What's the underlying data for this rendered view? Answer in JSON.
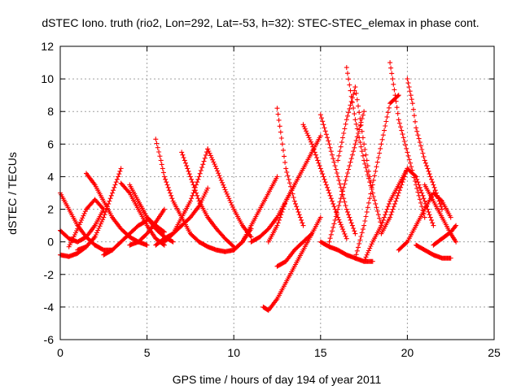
{
  "chart_data": {
    "type": "scatter",
    "title": "dSTEC Iono. truth (rio2, Lon=292, Lat=-53, h=32): STEC-STEC_elemax in phase cont.",
    "xlabel": "GPS time / hours of day 194 of year 2011",
    "ylabel": "dSTEC  / TECUs",
    "xlim": [
      0,
      25
    ],
    "ylim": [
      -6,
      12
    ],
    "xticks": [
      "0",
      "5",
      "10",
      "15",
      "20",
      "25"
    ],
    "yticks": [
      "-6",
      "-4",
      "-2",
      "0",
      "2",
      "4",
      "6",
      "8",
      "10",
      "12"
    ],
    "grid": true,
    "marker": "+",
    "color": "#ff0000",
    "series": [
      {
        "x": [
          0.0,
          0.5,
          1.0,
          1.5,
          2.0,
          2.5,
          3.0
        ],
        "y": [
          3.0,
          2.0,
          1.0,
          0.3,
          -0.2,
          -0.5,
          -0.5
        ]
      },
      {
        "x": [
          0.0,
          0.5,
          1.0,
          1.5,
          2.0
        ],
        "y": [
          -0.8,
          -0.9,
          -0.7,
          -0.3,
          0.3
        ]
      },
      {
        "x": [
          0.0,
          0.5,
          1.0,
          1.5,
          2.0,
          2.5
        ],
        "y": [
          0.7,
          0.2,
          0.0,
          0.3,
          1.0,
          2.0
        ]
      },
      {
        "x": [
          0.5,
          1.0,
          1.5,
          2.0,
          2.5
        ],
        "y": [
          -0.3,
          0.8,
          2.0,
          2.6,
          2.0
        ]
      },
      {
        "x": [
          1.5,
          2.0,
          2.5,
          3.0,
          3.5,
          4.0,
          4.5,
          5.0
        ],
        "y": [
          4.2,
          3.5,
          2.5,
          1.5,
          0.8,
          0.3,
          0.0,
          -0.2
        ]
      },
      {
        "x": [
          1.0,
          1.5,
          2.0,
          2.5,
          3.0,
          3.5
        ],
        "y": [
          -0.5,
          -0.3,
          0.3,
          1.5,
          3.0,
          4.5
        ]
      },
      {
        "x": [
          2.5,
          3.0,
          3.5,
          4.0,
          4.5,
          5.0
        ],
        "y": [
          -0.8,
          -0.5,
          0.0,
          0.5,
          1.0,
          1.3
        ]
      },
      {
        "x": [
          3.5,
          4.0,
          4.5,
          5.0,
          5.5,
          6.0
        ],
        "y": [
          3.6,
          3.0,
          2.0,
          1.0,
          0.2,
          -0.2
        ]
      },
      {
        "x": [
          4.0,
          4.5,
          5.0,
          5.5,
          6.0,
          6.5
        ],
        "y": [
          3.5,
          2.5,
          1.5,
          0.8,
          0.3,
          0.0
        ]
      },
      {
        "x": [
          4.5,
          5.0,
          5.5,
          6.0
        ],
        "y": [
          2.5,
          1.5,
          1.0,
          0.6
        ]
      },
      {
        "x": [
          4.0,
          4.5,
          5.0,
          5.5,
          6.0
        ],
        "y": [
          -0.2,
          0.0,
          0.5,
          1.2,
          2.0
        ]
      },
      {
        "x": [
          5.5,
          5.8,
          6.0,
          6.5,
          7.0,
          7.5,
          8.0
        ],
        "y": [
          6.3,
          5.0,
          4.0,
          2.5,
          1.5,
          0.5,
          0.0
        ]
      },
      {
        "x": [
          6.0,
          6.5,
          7.0,
          7.5,
          8.0,
          8.5
        ],
        "y": [
          0.0,
          0.5,
          1.5,
          2.5,
          4.0,
          5.7
        ]
      },
      {
        "x": [
          7.0,
          7.5,
          8.0,
          8.5,
          9.0,
          9.5,
          10.0
        ],
        "y": [
          5.5,
          4.0,
          2.5,
          1.5,
          0.8,
          0.2,
          -0.3
        ]
      },
      {
        "x": [
          5.5,
          6.0,
          6.5,
          7.0,
          7.5,
          8.0,
          8.5
        ],
        "y": [
          -0.2,
          0.2,
          0.5,
          1.0,
          1.5,
          2.2,
          3.3
        ]
      },
      {
        "x": [
          8.5,
          9.0,
          9.5,
          10.0,
          10.5,
          11.0
        ],
        "y": [
          5.7,
          4.5,
          3.2,
          2.0,
          1.0,
          0.3
        ]
      },
      {
        "x": [
          8.0,
          8.5,
          9.0,
          9.5,
          10.0,
          10.5,
          11.0
        ],
        "y": [
          0.0,
          -0.3,
          -0.5,
          -0.6,
          -0.5,
          0.0,
          0.8
        ]
      },
      {
        "x": [
          10.0,
          10.5,
          11.0,
          11.5,
          12.0,
          12.5
        ],
        "y": [
          -0.5,
          0.0,
          1.0,
          2.0,
          3.0,
          4.0
        ]
      },
      {
        "x": [
          11.0,
          11.5,
          12.0,
          12.5,
          13.0,
          13.5
        ],
        "y": [
          0.0,
          0.3,
          0.8,
          1.5,
          2.5,
          3.5
        ]
      },
      {
        "x": [
          11.7,
          12.0,
          12.5,
          13.0,
          13.5,
          14.0,
          14.5,
          15.0
        ],
        "y": [
          -4.0,
          -4.2,
          -3.5,
          -2.5,
          -1.5,
          -0.5,
          0.5,
          1.5
        ]
      },
      {
        "x": [
          12.0,
          12.5,
          13.0,
          13.5,
          14.0,
          14.5,
          15.0
        ],
        "y": [
          0.0,
          1.0,
          2.5,
          3.5,
          4.5,
          5.5,
          6.5
        ]
      },
      {
        "x": [
          12.5,
          12.8,
          13.0,
          13.5,
          14.0
        ],
        "y": [
          8.2,
          6.0,
          4.5,
          2.5,
          1.0
        ]
      },
      {
        "x": [
          12.5,
          13.0,
          13.5,
          14.0,
          14.5
        ],
        "y": [
          -1.5,
          -1.2,
          -0.5,
          0.0,
          0.5
        ]
      },
      {
        "x": [
          14.0,
          14.5,
          15.0,
          15.5,
          16.0,
          16.5
        ],
        "y": [
          7.2,
          6.0,
          4.5,
          3.0,
          1.5,
          0.2
        ]
      },
      {
        "x": [
          15.0,
          15.5,
          16.0,
          16.5,
          17.0
        ],
        "y": [
          7.8,
          6.0,
          4.0,
          2.0,
          0.5
        ]
      },
      {
        "x": [
          15.5,
          16.0,
          16.5,
          17.0,
          17.5
        ],
        "y": [
          0.0,
          2.0,
          4.0,
          6.0,
          8.0
        ]
      },
      {
        "x": [
          16.0,
          16.5,
          17.0,
          17.5,
          18.0
        ],
        "y": [
          5.0,
          7.5,
          9.5,
          6.0,
          3.0
        ]
      },
      {
        "x": [
          16.5,
          17.0,
          17.5,
          18.0,
          18.5
        ],
        "y": [
          10.7,
          7.5,
          5.0,
          3.0,
          1.0
        ]
      },
      {
        "x": [
          17.0,
          17.5,
          18.0,
          18.5,
          19.0,
          19.5
        ],
        "y": [
          -1.0,
          1.0,
          3.5,
          6.0,
          8.5,
          9.0
        ]
      },
      {
        "x": [
          15.0,
          15.5,
          16.0,
          16.5,
          17.0,
          17.5,
          18.0
        ],
        "y": [
          0.0,
          -0.3,
          -0.5,
          -0.8,
          -1.0,
          -1.2,
          -1.2
        ]
      },
      {
        "x": [
          17.5,
          18.0,
          18.5,
          19.0,
          19.5,
          20.0
        ],
        "y": [
          -1.2,
          0.0,
          1.0,
          2.5,
          3.5,
          4.5
        ]
      },
      {
        "x": [
          19.0,
          19.3,
          19.5,
          20.0,
          20.5,
          21.0
        ],
        "y": [
          11.0,
          9.0,
          7.5,
          5.5,
          3.5,
          1.5
        ]
      },
      {
        "x": [
          20.0,
          20.3,
          20.5,
          21.0,
          21.5,
          22.0
        ],
        "y": [
          10.0,
          8.5,
          7.0,
          5.0,
          3.5,
          2.0
        ]
      },
      {
        "x": [
          18.5,
          19.0,
          19.5,
          20.0,
          20.5,
          21.0,
          21.5
        ],
        "y": [
          0.5,
          1.5,
          3.0,
          4.5,
          4.0,
          2.5,
          1.0
        ]
      },
      {
        "x": [
          19.5,
          20.0,
          20.5,
          21.0,
          21.5,
          22.0,
          22.5
        ],
        "y": [
          -0.5,
          0.0,
          1.0,
          2.0,
          3.0,
          2.5,
          1.5
        ]
      },
      {
        "x": [
          20.5,
          21.0,
          21.5,
          22.0,
          22.5
        ],
        "y": [
          -0.2,
          -0.5,
          -0.8,
          -1.0,
          -1.0
        ]
      },
      {
        "x": [
          21.0,
          21.5,
          22.0,
          22.5,
          22.8
        ],
        "y": [
          3.5,
          2.5,
          1.5,
          0.5,
          0.0
        ]
      },
      {
        "x": [
          21.5,
          22.0,
          22.5,
          22.8
        ],
        "y": [
          -0.2,
          0.2,
          0.6,
          1.0
        ]
      }
    ]
  }
}
